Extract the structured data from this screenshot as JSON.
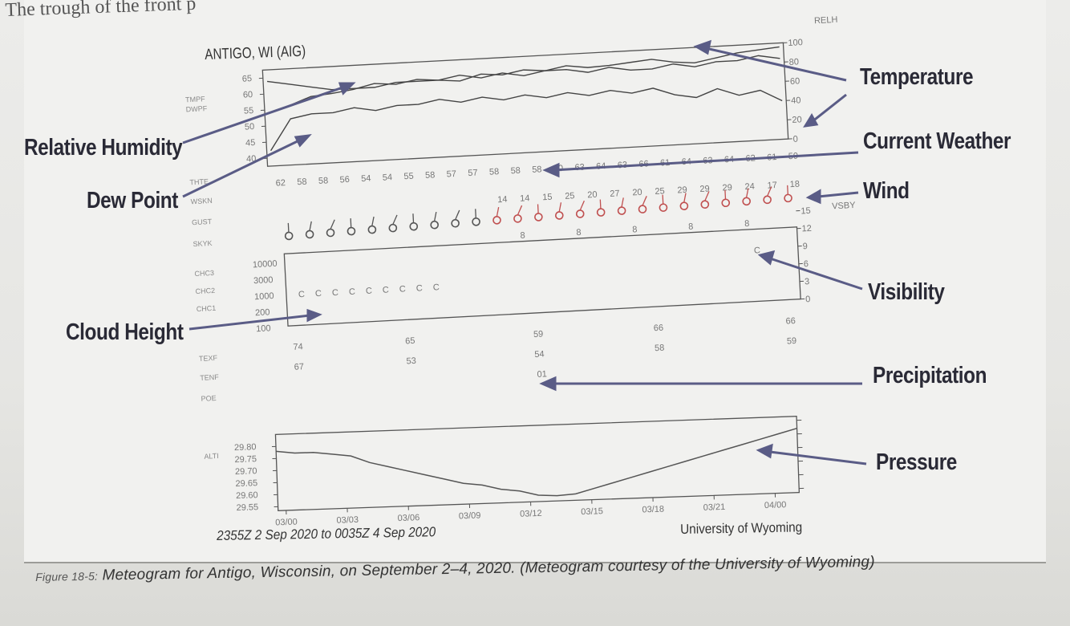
{
  "header_text": "The trough of the front p",
  "station": "ANTIGO, WI (AIG)",
  "right_labels": {
    "relh": "RELH",
    "vsby": "VSBY"
  },
  "callouts": {
    "temperature": "Temperature",
    "current_weather": "Current Weather",
    "wind": "Wind",
    "visibility": "Visibility",
    "precipitation": "Precipitation",
    "pressure": "Pressure",
    "relative_humidity": "Relative Humidity",
    "dew_point": "Dew Point",
    "cloud_height": "Cloud Height"
  },
  "date_range": "2355Z 2 Sep 2020 to 0035Z 4 Sep 2020",
  "credit": "University of Wyoming",
  "caption": {
    "figure": "Figure 18-5:",
    "text": "Meteogram for Antigo, Wisconsin, on September 2–4, 2020. (Meteogram courtesy of the University of Wyoming)"
  },
  "row_labels": [
    "TMPF",
    "DWPF",
    "THTE",
    "WSKN",
    "GUST",
    "SKYK",
    "CHC3",
    "CHC2",
    "CHC1",
    "TEXF",
    "TENF",
    "POE",
    "ALTI"
  ],
  "chart_data": [
    {
      "type": "line",
      "name": "temperature-dewpoint-relh",
      "left_ticks": [
        "65",
        "60",
        "55",
        "50",
        "45",
        "40"
      ],
      "right_ticks": [
        "100",
        "80",
        "60",
        "40",
        "20",
        "0"
      ],
      "ylim_left": [
        40,
        65
      ],
      "ylim_right": [
        0,
        100
      ],
      "series": [
        {
          "name": "RELH",
          "axis": "right",
          "values": [
            55,
            62,
            70,
            72,
            75,
            80,
            78,
            82,
            80,
            78,
            84,
            82,
            86,
            84,
            88,
            85,
            86,
            88,
            90,
            86,
            84,
            88,
            92,
            94,
            96
          ]
        },
        {
          "name": "TMPF",
          "axis": "left",
          "values": [
            62,
            61,
            60,
            59,
            59,
            59,
            60,
            60,
            60,
            61,
            60,
            61,
            60,
            61,
            61,
            60,
            61,
            60,
            60,
            61,
            60,
            61,
            61,
            62,
            61
          ]
        },
        {
          "name": "DWPF",
          "axis": "left",
          "values": [
            44,
            52,
            53,
            53,
            54,
            53,
            54,
            54,
            55,
            54,
            55,
            54,
            55,
            54,
            55,
            54,
            55,
            54,
            55,
            53,
            52,
            54,
            52,
            53,
            50
          ]
        }
      ]
    },
    {
      "type": "table",
      "name": "theta-e-row",
      "values": [
        "62",
        "58",
        "58",
        "56",
        "54",
        "54",
        "55",
        "58",
        "57",
        "57",
        "58",
        "58",
        "58",
        "60",
        "63",
        "64",
        "63",
        "66",
        "61",
        "64",
        "63",
        "64",
        "62",
        "61",
        "59"
      ]
    },
    {
      "type": "table",
      "name": "wind-row",
      "values": [
        "14",
        "14",
        "15",
        "25",
        "20",
        "27",
        "20",
        "25",
        "29",
        "29",
        "29",
        "24",
        "17",
        "18"
      ]
    },
    {
      "type": "table",
      "name": "cloud-visibility",
      "left_ticks": [
        "10000",
        "3000",
        "1000",
        "200",
        "100"
      ],
      "right_ticks": [
        "15",
        "12",
        "9",
        "6",
        "3",
        "0"
      ],
      "cloud_symbols": [
        "C",
        "C",
        "C",
        "C",
        "C",
        "C",
        "C",
        "C",
        "C",
        "C"
      ],
      "vis_marks": [
        "8",
        "8",
        "8",
        "8",
        "8"
      ],
      "precip_upper": [
        "74",
        "65",
        "59",
        "66",
        "66"
      ],
      "precip_lower": [
        "67",
        "53",
        "54",
        "58",
        "59"
      ],
      "precip_amount": "01"
    },
    {
      "type": "line",
      "name": "pressure",
      "left_ticks": [
        "29.80",
        "29.75",
        "29.70",
        "29.65",
        "29.60",
        "29.55"
      ],
      "x_ticks": [
        "03/00",
        "03/03",
        "03/06",
        "03/09",
        "03/12",
        "03/15",
        "03/18",
        "03/21",
        "04/00"
      ],
      "ylim": [
        29.55,
        29.8
      ],
      "values": [
        29.78,
        29.77,
        29.77,
        29.76,
        29.75,
        29.72,
        29.7,
        29.68,
        29.66,
        29.64,
        29.62,
        29.61,
        29.59,
        29.58,
        29.56,
        29.555,
        29.56,
        29.58,
        29.6,
        29.62,
        29.64,
        29.66,
        29.68,
        29.7,
        29.72,
        29.74,
        29.76,
        29.78,
        29.8
      ]
    }
  ]
}
